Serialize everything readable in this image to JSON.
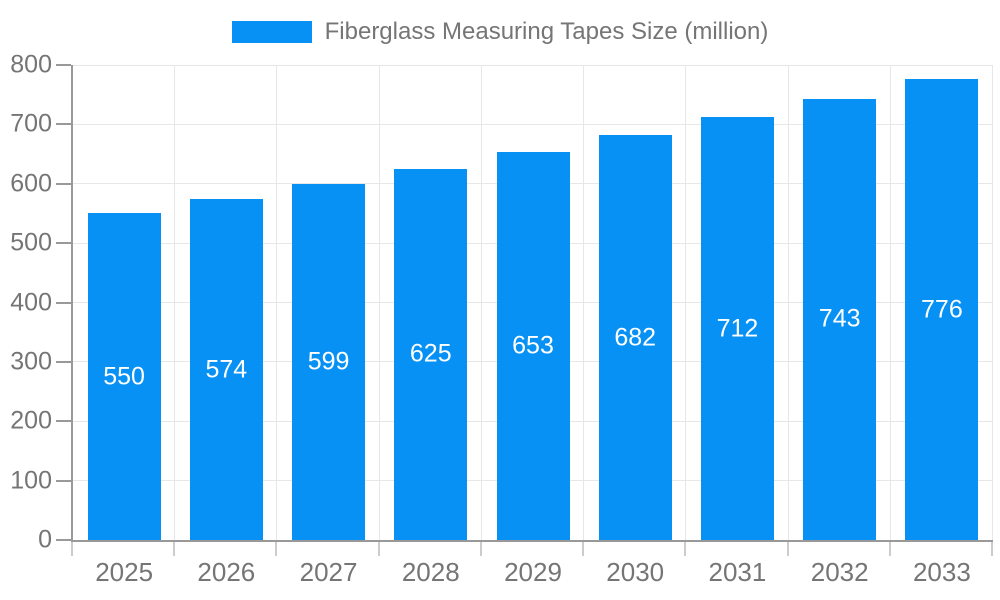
{
  "legend": {
    "label": "Fiberglass Measuring Tapes Size (million)"
  },
  "chart_data": {
    "type": "bar",
    "title": "Fiberglass Measuring Tapes Size (million)",
    "categories": [
      "2025",
      "2026",
      "2027",
      "2028",
      "2029",
      "2030",
      "2031",
      "2032",
      "2033"
    ],
    "values": [
      550,
      574,
      599,
      625,
      653,
      682,
      712,
      743,
      776
    ],
    "xlabel": "",
    "ylabel": "",
    "ylim": [
      0,
      800
    ],
    "yticks": [
      0,
      100,
      200,
      300,
      400,
      500,
      600,
      700,
      800
    ],
    "grid": true,
    "legend_position": "top-center",
    "colors": {
      "bar": "#0891f5",
      "value_label": "#ffffff",
      "axis_text": "#757575",
      "gridline": "#e7e7e7",
      "axis_line": "#999999",
      "x_tick": "#cccccc"
    }
  }
}
